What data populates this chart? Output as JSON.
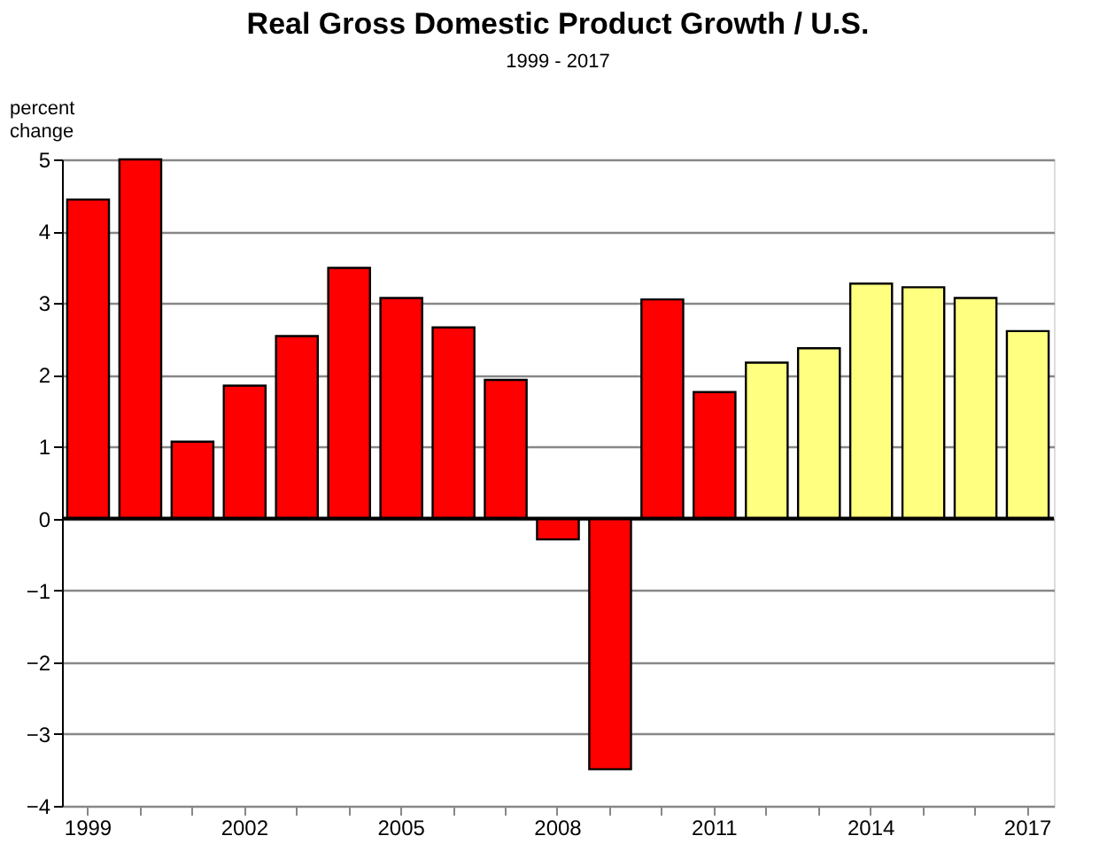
{
  "chart_data": {
    "type": "bar",
    "title": "Real Gross Domestic Product Growth / U.S.",
    "subtitle": "1999 - 2017",
    "ylabel": "percent change",
    "categories": [
      "1999",
      null,
      null,
      "2002",
      null,
      null,
      "2005",
      null,
      null,
      "2008",
      null,
      null,
      "2011",
      null,
      null,
      "2014",
      null,
      null,
      "2017"
    ],
    "values": [
      4.44,
      5.0,
      1.07,
      1.85,
      2.54,
      3.49,
      3.07,
      2.66,
      1.93,
      -0.29,
      -3.49,
      3.05,
      1.76,
      2.17,
      2.37,
      3.27,
      3.22,
      3.07,
      2.61
    ],
    "colors": [
      "#ff0000",
      "#ff0000",
      "#ff0000",
      "#ff0000",
      "#ff0000",
      "#ff0000",
      "#ff0000",
      "#ff0000",
      "#ff0000",
      "#ff0000",
      "#ff0000",
      "#ff0000",
      "#ff0000",
      "#ffff80",
      "#ffff80",
      "#ffff80",
      "#ffff80",
      "#ffff80",
      "#ffff80"
    ],
    "ylim": [
      -4,
      5
    ],
    "yticks": [
      -4,
      -3,
      -2,
      -1,
      0,
      1,
      2,
      3,
      4,
      5
    ],
    "grid": "y"
  }
}
